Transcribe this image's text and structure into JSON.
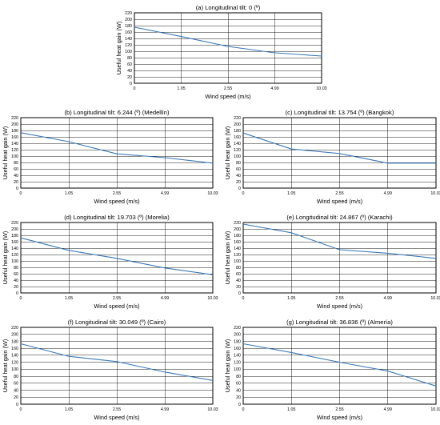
{
  "chart_data": [
    {
      "type": "line",
      "title": "(a) Longitudinal tilt: 0 (º)",
      "xlabel": "Wind speed (m/s)",
      "ylabel": "Useful heat gain (W)",
      "categories": [
        "0",
        "1.05",
        "2.55",
        "4.99",
        "10.03"
      ],
      "values": [
        175,
        146,
        115,
        95,
        85
      ],
      "ylim": [
        0,
        220
      ],
      "yticks": [
        0,
        20,
        40,
        60,
        80,
        100,
        120,
        140,
        160,
        180,
        200,
        220
      ],
      "grid": true
    },
    {
      "type": "line",
      "title": "(b) Longitudinal tilt: 6.244 (º) (Medellín)",
      "xlabel": "Wind speed (m/s)",
      "ylabel": "Useful heat gain (W)",
      "categories": [
        "0",
        "1.05",
        "2.55",
        "4.99",
        "10.03"
      ],
      "values": [
        173,
        145,
        107,
        95,
        78
      ],
      "ylim": [
        0,
        220
      ],
      "yticks": [
        0,
        20,
        40,
        60,
        80,
        100,
        120,
        140,
        160,
        180,
        200,
        220
      ],
      "grid": true
    },
    {
      "type": "line",
      "title": "(c) Longitudinal tilt: 13.754 (º) (Bangkok)",
      "xlabel": "Wind speed (m/s)",
      "ylabel": "Useful heat gain (W)",
      "categories": [
        "0",
        "1.05",
        "2.55",
        "4.99",
        "10.03"
      ],
      "values": [
        172,
        122,
        108,
        78,
        78
      ],
      "ylim": [
        0,
        220
      ],
      "yticks": [
        0,
        20,
        40,
        60,
        80,
        100,
        120,
        140,
        160,
        180,
        200,
        220
      ],
      "grid": true
    },
    {
      "type": "line",
      "title": "(d) Longitudinal tilt: 19.703 (º) (Morelia)",
      "xlabel": "Wind speed (m/s)",
      "ylabel": "Useful heat gain (W)",
      "categories": [
        "0",
        "1.05",
        "2.55",
        "4.99",
        "10.03"
      ],
      "values": [
        172,
        133,
        108,
        78,
        57
      ],
      "ylim": [
        0,
        220
      ],
      "yticks": [
        0,
        20,
        40,
        60,
        80,
        100,
        120,
        140,
        160,
        180,
        200,
        220
      ],
      "grid": true
    },
    {
      "type": "line",
      "title": "(e) Longitudinal tilt: 24.867 (º) (Karachi)",
      "xlabel": "Wind speed (m/s)",
      "ylabel": "Useful heat gain (W)",
      "categories": [
        "0",
        "1.05",
        "2.55",
        "4.99",
        "10.03"
      ],
      "values": [
        215,
        188,
        135,
        124,
        108
      ],
      "ylim": [
        0,
        220
      ],
      "yticks": [
        0,
        20,
        40,
        60,
        80,
        100,
        120,
        140,
        160,
        180,
        200,
        220
      ],
      "grid": true
    },
    {
      "type": "line",
      "title": "(f) Longitudinal tilt: 30.049 (º) (Cairo)",
      "xlabel": "Wind speed (m/s)",
      "ylabel": "Useful heat gain (W)",
      "categories": [
        "0",
        "1.05",
        "2.55",
        "4.99",
        "10.03"
      ],
      "values": [
        173,
        137,
        122,
        92,
        68
      ],
      "ylim": [
        0,
        220
      ],
      "yticks": [
        0,
        20,
        40,
        60,
        80,
        100,
        120,
        140,
        160,
        180,
        200,
        220
      ],
      "grid": true
    },
    {
      "type": "line",
      "title": "(g) Longitudinal tilt: 36.836 (º) (Almería)",
      "xlabel": "Wind speed (m/s)",
      "ylabel": "Useful heat gain (W)",
      "categories": [
        "0",
        "1.05",
        "2.55",
        "4.99",
        "10.03"
      ],
      "values": [
        173,
        148,
        120,
        95,
        52
      ],
      "ylim": [
        0,
        220
      ],
      "yticks": [
        0,
        20,
        40,
        60,
        80,
        100,
        120,
        140,
        160,
        180,
        200,
        220
      ],
      "grid": true
    }
  ],
  "colors": {
    "series": "#3a78b7",
    "grid": "#000000",
    "text": "#000000"
  }
}
